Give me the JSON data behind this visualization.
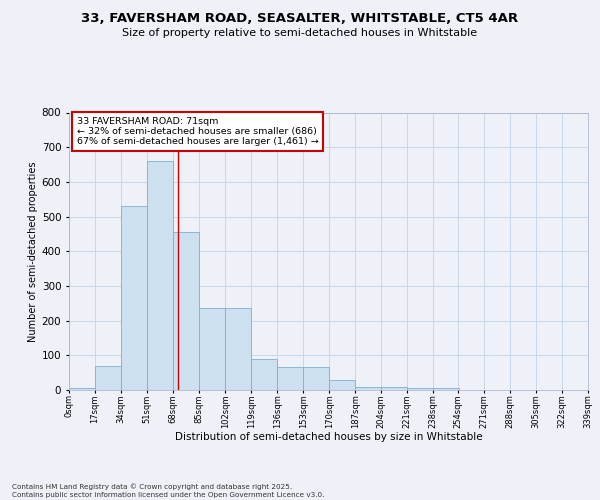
{
  "title_line1": "33, FAVERSHAM ROAD, SEASALTER, WHITSTABLE, CT5 4AR",
  "title_line2": "Size of property relative to semi-detached houses in Whitstable",
  "xlabel": "Distribution of semi-detached houses by size in Whitstable",
  "ylabel": "Number of semi-detached properties",
  "bar_color": "#cce0f0",
  "bar_edge_color": "#7ab0d4",
  "grid_color": "#c8d8e8",
  "annotation_text": "33 FAVERSHAM ROAD: 71sqm\n← 32% of semi-detached houses are smaller (686)\n67% of semi-detached houses are larger (1,461) →",
  "annotation_box_color": "#ffffff",
  "annotation_border_color": "#cc0000",
  "vline_color": "#cc0000",
  "vline_x": 71,
  "footer_text": "Contains HM Land Registry data © Crown copyright and database right 2025.\nContains public sector information licensed under the Open Government Licence v3.0.",
  "bin_edges": [
    0,
    17,
    34,
    51,
    68,
    85,
    102,
    119,
    136,
    153,
    170,
    187,
    204,
    221,
    238,
    254,
    271,
    288,
    305,
    322
  ],
  "bin_labels": [
    "0sqm",
    "17sqm",
    "34sqm",
    "51sqm",
    "68sqm",
    "85sqm",
    "102sqm",
    "119sqm",
    "136sqm",
    "153sqm",
    "170sqm",
    "187sqm",
    "204sqm",
    "221sqm",
    "238sqm",
    "254sqm",
    "271sqm",
    "288sqm",
    "305sqm",
    "322sqm",
    "339sqm"
  ],
  "bar_heights": [
    5,
    70,
    530,
    660,
    455,
    235,
    235,
    90,
    65,
    65,
    30,
    10,
    10,
    5,
    5,
    1,
    0,
    0,
    0,
    0
  ],
  "ylim": [
    0,
    800
  ],
  "yticks": [
    0,
    100,
    200,
    300,
    400,
    500,
    600,
    700,
    800
  ],
  "xtick_positions": [
    0,
    17,
    34,
    51,
    68,
    85,
    102,
    119,
    136,
    153,
    170,
    187,
    204,
    221,
    238,
    254,
    271,
    288,
    305,
    322,
    339
  ],
  "background_color": "#eef2f8"
}
